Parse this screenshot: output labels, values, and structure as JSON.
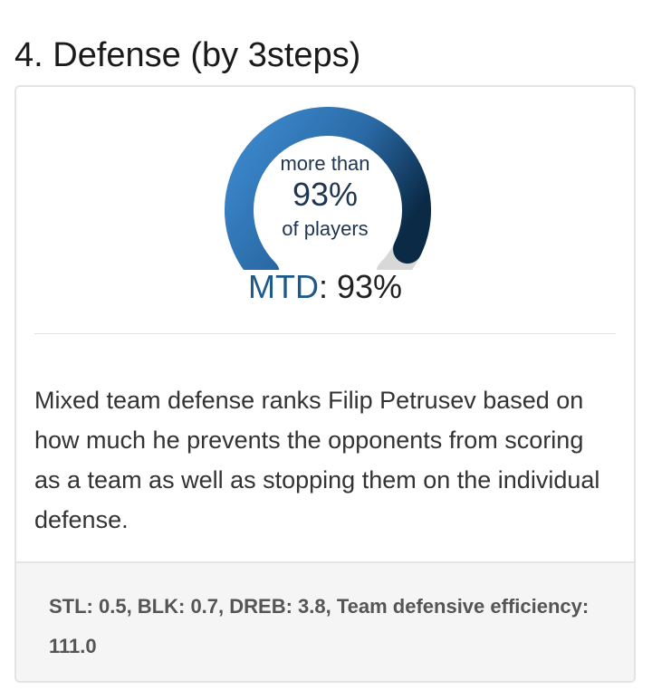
{
  "section": {
    "title": "4. Defense (by 3steps)"
  },
  "gauge": {
    "top_text": "more than",
    "percent_text": "93%",
    "bottom_text": "of players",
    "value_fraction": 0.93,
    "colors": {
      "start": "#3d8bd0",
      "end": "#0b2a46",
      "track": "#d8d8d8"
    }
  },
  "metric": {
    "label": "MTD",
    "separator": ": ",
    "value": "93%"
  },
  "description": "Mixed team defense ranks Filip Petrusev based on how much he prevents the opponents from scoring as a team as well as stopping them on the individual defense.",
  "footer": {
    "stats": "STL: 0.5, BLK: 0.7, DREB: 3.8, Team defensive efficiency: 111.0"
  }
}
